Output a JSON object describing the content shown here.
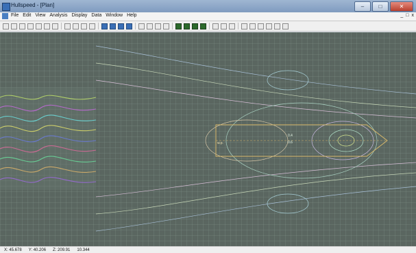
{
  "window": {
    "title": "Hullspeed - [Plan]",
    "controls": {
      "minimize": "–",
      "maximize": "□",
      "close": "✕"
    }
  },
  "menu": {
    "items": [
      "File",
      "Edit",
      "View",
      "Analysis",
      "Display",
      "Data",
      "Window",
      "Help"
    ]
  },
  "mdi": {
    "minimize": "_",
    "restore": "□",
    "close": "x"
  },
  "toolbar": {
    "icons": [
      "new-icon",
      "open-icon",
      "save-icon",
      "cut-icon",
      "copy-icon",
      "paste-icon",
      "print-icon",
      "zoom-in-icon",
      "zoom-out-icon",
      "pan-icon",
      "home-icon",
      "view1-icon",
      "view2-icon",
      "view3-icon",
      "view4-icon",
      "calc-icon",
      "wave-icon",
      "settings-icon",
      "image-icon",
      "green1-icon",
      "green2-icon",
      "green3-icon",
      "green4-icon",
      "ruler-icon",
      "grid-icon",
      "graph-icon",
      "pointer-icon",
      "arrow-down-icon",
      "arrow-left-icon",
      "arrow-up-icon",
      "arrow-right-icon",
      "flag-icon"
    ]
  },
  "canvas": {
    "hull_labels": [
      "w.p.",
      "0.4",
      "0.6"
    ]
  },
  "status": [
    "X: 45.678",
    "Y: 40.206",
    "Z: 209.91",
    "10.344"
  ]
}
